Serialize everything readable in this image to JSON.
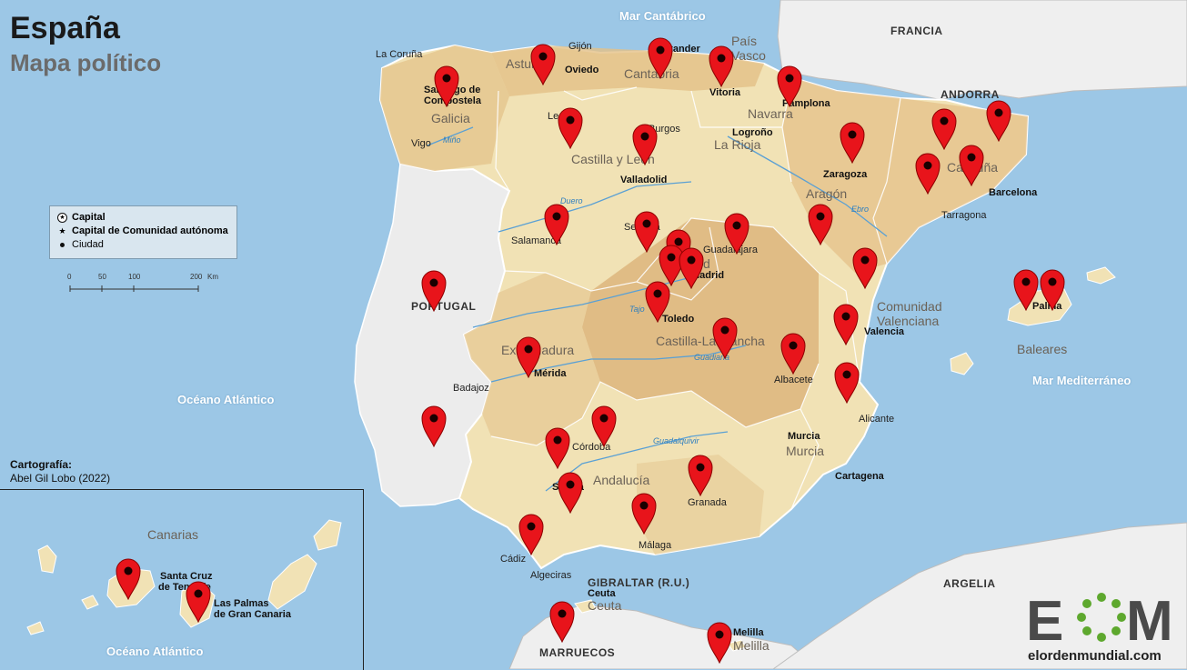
{
  "title": "España",
  "subtitle": "Mapa político",
  "seas": {
    "cantabrico": "Mar Cantábrico",
    "atlantico": "Océano Atlántico",
    "mediterraneo": "Mar Mediterráneo",
    "atlantico_inset": "Océano Atlántico"
  },
  "countries": {
    "francia": "FRANCIA",
    "andorra": "ANDORRA",
    "portugal": "PORTUGAL",
    "argelia": "ARGELIA",
    "marruecos": "MARRUECOS",
    "gibraltar": "GIBRALTAR (R.U.)"
  },
  "regions": {
    "galicia": "Galicia",
    "asturias": "Asturias",
    "cantabria": "Cantabria",
    "pais_vasco_1": "País",
    "pais_vasco_2": "Vasco",
    "navarra": "Navarra",
    "la_rioja": "La Rioja",
    "castilla_leon": "Castilla y León",
    "aragon": "Aragón",
    "cataluna": "Cataluña",
    "madrid": "Madrid",
    "extremadura": "Extremadura",
    "castilla_mancha": "Castilla-La Mancha",
    "com_valenciana_1": "Comunidad",
    "com_valenciana_2": "Valenciana",
    "murcia": "Murcia",
    "andalucia": "Andalucía",
    "baleares": "Baleares",
    "canarias": "Canarias",
    "ceuta": "Ceuta",
    "melilla": "Melilla"
  },
  "capitals": {
    "santiago_1": "Santiago de",
    "santiago_2": "Compostela",
    "oviedo": "Oviedo",
    "santander": "Santander",
    "vitoria": "Vitoria",
    "pamplona": "Pamplona",
    "logrono": "Logroño",
    "valladolid": "Valladolid",
    "zaragoza": "Zaragoza",
    "barcelona": "Barcelona",
    "madrid": "Madrid",
    "toledo": "Toledo",
    "merida": "Mérida",
    "valencia": "Valencia",
    "palma": "Palma",
    "murcia": "Murcia",
    "sevilla": "Sevilla",
    "santa_cruz_1": "Santa Cruz",
    "santa_cruz_2": "de Tenerife",
    "las_palmas_1": "Las Palmas",
    "las_palmas_2": "de Gran Canaria",
    "ceuta": "Ceuta",
    "melilla": "Melilla"
  },
  "cities": {
    "la_coruna": "La Coruña",
    "gijon": "Gijón",
    "vigo": "Vigo",
    "leon": "León",
    "burgos": "Burgos",
    "salamanca": "Salamanca",
    "segovia": "Segovia",
    "guadalajara": "Guadalajara",
    "tarragona": "Tarragona",
    "badajoz": "Badajoz",
    "albacete": "Albacete",
    "alicante": "Alicante",
    "cordoba": "Córdoba",
    "granada": "Granada",
    "malaga": "Málaga",
    "cadiz": "Cádiz",
    "algeciras": "Algeciras",
    "cartagena": "Cartagena"
  },
  "rivers": {
    "mino": "Miño",
    "duero": "Duero",
    "ebro": "Ebro",
    "tajo": "Tajo",
    "guadiana": "Guadiana",
    "guadalquivir": "Guadalquivir"
  },
  "legend": {
    "capital": "Capital",
    "capital_ca": "Capital de Comunidad autónoma",
    "ciudad": "Ciudad"
  },
  "scale": {
    "t0": "0",
    "t50": "50",
    "t100": "100",
    "t200": "200",
    "unit": "Km"
  },
  "credits": {
    "heading": "Cartografía:",
    "author": "Abel Gil Lobo (2022)"
  },
  "logo": {
    "letters": "EOM",
    "url": "elordenmundial.com"
  },
  "markers": {
    "color": "#e8141b",
    "icon": "map-pin-icon",
    "count": 37
  },
  "colors": {
    "sea": "#9cc7e6",
    "spain_light": "#f1e2b5",
    "spain_mid": "#e8c98f",
    "spain_dark": "#d6a76a",
    "neighbor": "#efefef",
    "borders": "#ffffff"
  }
}
